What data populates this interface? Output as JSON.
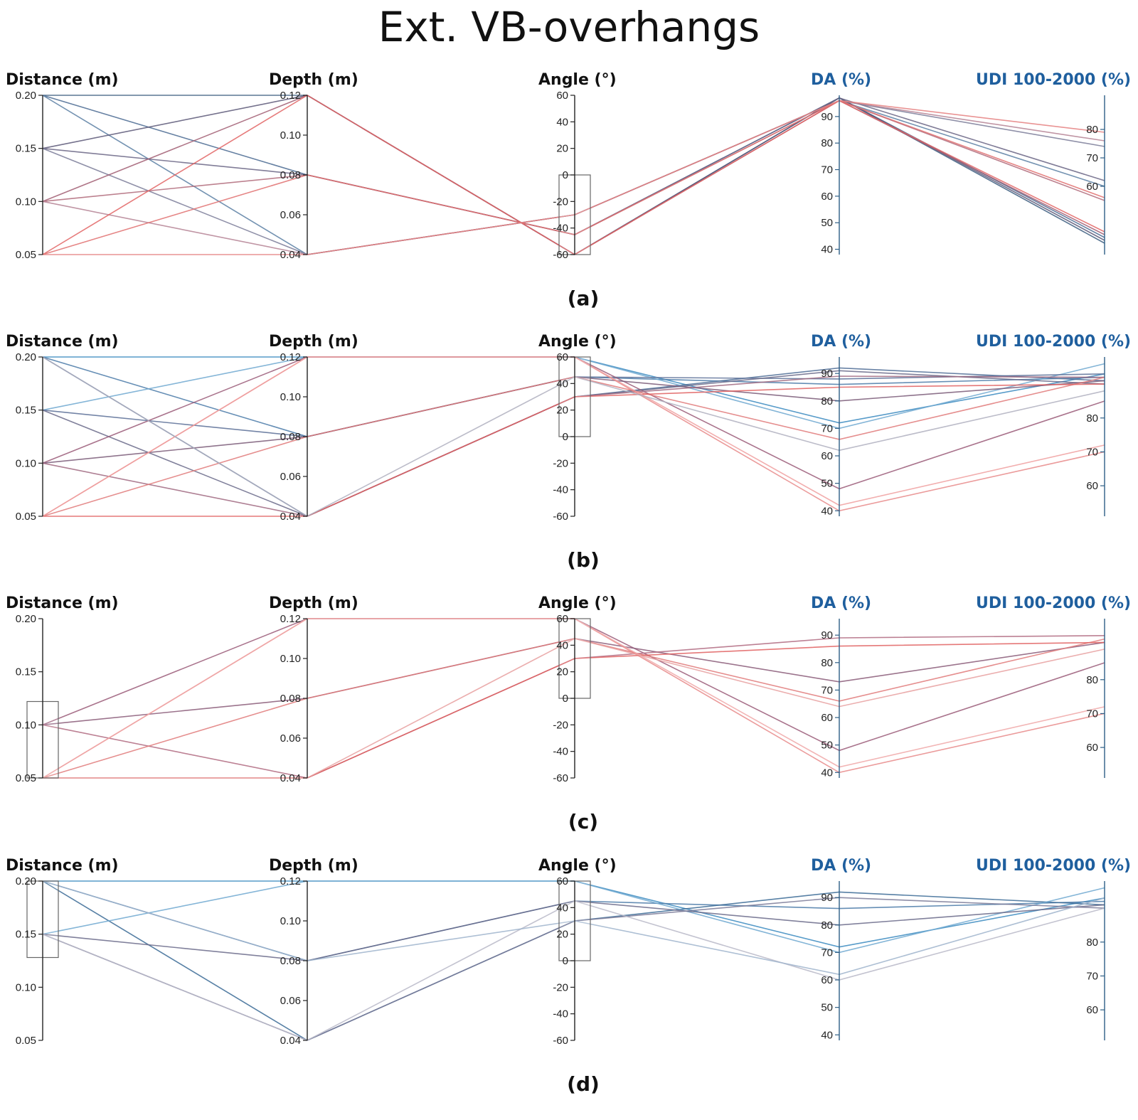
{
  "title": "Ext. VB-overhangs",
  "colors": {
    "blue": "#2f6f9f",
    "red": "#e05a5a",
    "axis": "#222222",
    "title_blue": "#1f5f9e"
  },
  "chart_data": [
    {
      "type": "parallel_coordinates",
      "label": "(a)",
      "axes": [
        {
          "name": "Distance (m)",
          "range": [
            0.05,
            0.2
          ],
          "ticks": [
            "0.20",
            "0.15",
            "0.10",
            "0.05"
          ],
          "tickValues": [
            0.2,
            0.15,
            0.1,
            0.05
          ],
          "tickSide": "left",
          "color": "dark"
        },
        {
          "name": "Depth (m)",
          "range": [
            0.04,
            0.12
          ],
          "ticks": [
            "0.12",
            "0.10",
            "0.08",
            "0.06",
            "0.04"
          ],
          "tickValues": [
            0.12,
            0.1,
            0.08,
            0.06,
            0.04
          ],
          "tickSide": "left",
          "color": "dark"
        },
        {
          "name": "Angle (°)",
          "range": [
            -60,
            60
          ],
          "ticks": [
            "60",
            "40",
            "20",
            "0",
            "-20",
            "-40",
            "-60"
          ],
          "tickValues": [
            60,
            40,
            20,
            0,
            -20,
            -40,
            -60
          ],
          "tickSide": "left",
          "color": "dark"
        },
        {
          "name": "DA (%)",
          "range": [
            38,
            98
          ],
          "ticks": [
            "90",
            "80",
            "70",
            "60",
            "50",
            "40"
          ],
          "tickValues": [
            90,
            80,
            70,
            60,
            50,
            40
          ],
          "tickSide": "left",
          "color": "blue"
        },
        {
          "name": "UDI 100-2000 (%)",
          "range": [
            36,
            92
          ],
          "ticks": [
            "80",
            "70",
            "60"
          ],
          "tickValues": [
            80,
            70,
            60
          ],
          "tickSide": "left",
          "color": "blue"
        }
      ],
      "brush": {
        "axis": 2,
        "range": [
          -60,
          0
        ]
      },
      "lines": [
        {
          "v": [
            0.2,
            0.12,
            -60,
            97,
            40
          ],
          "c": "#3d5e80"
        },
        {
          "v": [
            0.2,
            0.08,
            -45,
            97,
            42
          ],
          "c": "#4a6a92"
        },
        {
          "v": [
            0.2,
            0.04,
            -30,
            96,
            60
          ],
          "c": "#5b7fa3"
        },
        {
          "v": [
            0.15,
            0.12,
            -60,
            97,
            41
          ],
          "c": "#5c5878"
        },
        {
          "v": [
            0.15,
            0.08,
            -45,
            97,
            62
          ],
          "c": "#6a6585"
        },
        {
          "v": [
            0.15,
            0.04,
            -30,
            96,
            74
          ],
          "c": "#7b7d99"
        },
        {
          "v": [
            0.1,
            0.12,
            -60,
            96,
            43
          ],
          "c": "#a15d72"
        },
        {
          "v": [
            0.1,
            0.08,
            -45,
            96,
            55
          ],
          "c": "#b06a7a"
        },
        {
          "v": [
            0.1,
            0.04,
            -30,
            96,
            76
          ],
          "c": "#b58294"
        },
        {
          "v": [
            0.05,
            0.12,
            -60,
            96,
            44
          ],
          "c": "#e26464"
        },
        {
          "v": [
            0.05,
            0.08,
            -45,
            96,
            56
          ],
          "c": "#e07070"
        },
        {
          "v": [
            0.05,
            0.04,
            -30,
            96,
            79
          ],
          "c": "#e58080"
        }
      ]
    },
    {
      "type": "parallel_coordinates",
      "label": "(b)",
      "axes": [
        {
          "name": "Distance (m)",
          "range": [
            0.05,
            0.2
          ],
          "ticks": [
            "0.20",
            "0.15",
            "0.10",
            "0.05"
          ],
          "tickValues": [
            0.2,
            0.15,
            0.1,
            0.05
          ],
          "tickSide": "left",
          "color": "dark"
        },
        {
          "name": "Depth (m)",
          "range": [
            0.04,
            0.12
          ],
          "ticks": [
            "0.12",
            "0.10",
            "0.08",
            "0.06",
            "0.04"
          ],
          "tickValues": [
            0.12,
            0.1,
            0.08,
            0.06,
            0.04
          ],
          "tickSide": "left",
          "color": "dark"
        },
        {
          "name": "Angle (°)",
          "range": [
            -60,
            60
          ],
          "ticks": [
            "60",
            "40",
            "20",
            "0",
            "-20",
            "-40",
            "-60"
          ],
          "tickValues": [
            60,
            40,
            20,
            0,
            -20,
            -40,
            -60
          ],
          "tickSide": "left",
          "color": "dark"
        },
        {
          "name": "DA (%)",
          "range": [
            38,
            96
          ],
          "ticks": [
            "90",
            "80",
            "70",
            "60",
            "50",
            "40"
          ],
          "tickValues": [
            90,
            80,
            70,
            60,
            50,
            40
          ],
          "tickSide": "left",
          "color": "blue"
        },
        {
          "name": "UDI 100-2000 (%)",
          "range": [
            51,
            98
          ],
          "ticks": [
            "80",
            "70",
            "60"
          ],
          "tickValues": [
            80,
            70,
            60
          ],
          "tickSide": "left",
          "color": "blue"
        }
      ],
      "brush": {
        "axis": 2,
        "range": [
          0,
          60
        ]
      },
      "lines": [
        {
          "v": [
            0.2,
            0.12,
            60,
            72,
            93
          ],
          "c": "#3a8ac0"
        },
        {
          "v": [
            0.2,
            0.08,
            45,
            86,
            92
          ],
          "c": "#4a7aa8"
        },
        {
          "v": [
            0.2,
            0.04,
            30,
            92,
            91
          ],
          "c": "#4d6c95"
        },
        {
          "v": [
            0.15,
            0.12,
            60,
            70,
            96
          ],
          "c": "#6fa8d0"
        },
        {
          "v": [
            0.15,
            0.08,
            45,
            88,
            93
          ],
          "c": "#5a6f96"
        },
        {
          "v": [
            0.15,
            0.04,
            30,
            91,
            90
          ],
          "c": "#6a6a8a"
        },
        {
          "v": [
            0.1,
            0.12,
            60,
            48,
            85
          ],
          "c": "#9a5a78"
        },
        {
          "v": [
            0.1,
            0.08,
            45,
            80,
            91
          ],
          "c": "#7a5a78"
        },
        {
          "v": [
            0.1,
            0.04,
            30,
            89,
            92
          ],
          "c": "#a06880"
        },
        {
          "v": [
            0.05,
            0.12,
            60,
            40,
            70
          ],
          "c": "#e88a8a"
        },
        {
          "v": [
            0.05,
            0.08,
            45,
            66,
            92
          ],
          "c": "#e07a7a"
        },
        {
          "v": [
            0.05,
            0.04,
            30,
            85,
            90
          ],
          "c": "#e06060"
        },
        {
          "v": [
            0.05,
            0.12,
            60,
            42,
            72
          ],
          "c": "#f0a0a0"
        },
        {
          "v": [
            0.2,
            0.04,
            45,
            62,
            88
          ],
          "c": "#b0b0c0"
        }
      ]
    },
    {
      "type": "parallel_coordinates",
      "label": "(c)",
      "axes": [
        {
          "name": "Distance (m)",
          "range": [
            0.05,
            0.2
          ],
          "ticks": [
            "0.20",
            "0.15",
            "0.10",
            "0.05"
          ],
          "tickValues": [
            0.2,
            0.15,
            0.1,
            0.05
          ],
          "tickSide": "left",
          "color": "dark"
        },
        {
          "name": "Depth (m)",
          "range": [
            0.04,
            0.12
          ],
          "ticks": [
            "0.12",
            "0.10",
            "0.08",
            "0.06",
            "0.04"
          ],
          "tickValues": [
            0.12,
            0.1,
            0.08,
            0.06,
            0.04
          ],
          "tickSide": "left",
          "color": "dark"
        },
        {
          "name": "Angle (°)",
          "range": [
            -60,
            60
          ],
          "ticks": [
            "60",
            "40",
            "20",
            "0",
            "-20",
            "-40",
            "-60"
          ],
          "tickValues": [
            60,
            40,
            20,
            0,
            -20,
            -40,
            -60
          ],
          "tickSide": "left",
          "color": "dark"
        },
        {
          "name": "DA (%)",
          "range": [
            38,
            96
          ],
          "ticks": [
            "90",
            "80",
            "70",
            "60",
            "50",
            "40"
          ],
          "tickValues": [
            90,
            80,
            70,
            60,
            50,
            40
          ],
          "tickSide": "left",
          "color": "blue"
        },
        {
          "name": "UDI 100-2000 (%)",
          "range": [
            51,
            98
          ],
          "ticks": [
            "80",
            "70",
            "60"
          ],
          "tickValues": [
            80,
            70,
            60
          ],
          "tickSide": "left",
          "color": "blue"
        }
      ],
      "brush": {
        "axis": 0,
        "range": [
          0.05,
          0.122
        ]
      },
      "brush2": {
        "axis": 2,
        "range": [
          0,
          60
        ]
      },
      "lines": [
        {
          "v": [
            0.1,
            0.12,
            60,
            48,
            85
          ],
          "c": "#9a5a78"
        },
        {
          "v": [
            0.1,
            0.08,
            45,
            73,
            91
          ],
          "c": "#8a5a78"
        },
        {
          "v": [
            0.1,
            0.04,
            30,
            89,
            93
          ],
          "c": "#b06a80"
        },
        {
          "v": [
            0.05,
            0.12,
            60,
            40,
            70
          ],
          "c": "#e88a8a"
        },
        {
          "v": [
            0.05,
            0.08,
            45,
            66,
            92
          ],
          "c": "#e07a7a"
        },
        {
          "v": [
            0.05,
            0.04,
            30,
            86,
            91
          ],
          "c": "#e06060"
        },
        {
          "v": [
            0.05,
            0.12,
            60,
            42,
            72
          ],
          "c": "#f0a8a8"
        },
        {
          "v": [
            0.05,
            0.04,
            45,
            64,
            89
          ],
          "c": "#e8a0a0"
        }
      ]
    },
    {
      "type": "parallel_coordinates",
      "label": "(d)",
      "axes": [
        {
          "name": "Distance (m)",
          "range": [
            0.05,
            0.2
          ],
          "ticks": [
            "0.20",
            "0.15",
            "0.10",
            "0.05"
          ],
          "tickValues": [
            0.2,
            0.15,
            0.1,
            0.05
          ],
          "tickSide": "left",
          "color": "dark"
        },
        {
          "name": "Depth (m)",
          "range": [
            0.04,
            0.12
          ],
          "ticks": [
            "0.12",
            "0.10",
            "0.08",
            "0.06",
            "0.04"
          ],
          "tickValues": [
            0.12,
            0.1,
            0.08,
            0.06,
            0.04
          ],
          "tickSide": "left",
          "color": "dark"
        },
        {
          "name": "Angle (°)",
          "range": [
            -60,
            60
          ],
          "ticks": [
            "60",
            "40",
            "20",
            "0",
            "-20",
            "-40",
            "-60"
          ],
          "tickValues": [
            60,
            40,
            20,
            0,
            -20,
            -40,
            -60
          ],
          "tickSide": "left",
          "color": "dark"
        },
        {
          "name": "DA (%)",
          "range": [
            38,
            96
          ],
          "ticks": [
            "90",
            "80",
            "70",
            "60",
            "50",
            "40"
          ],
          "tickValues": [
            90,
            80,
            70,
            60,
            50,
            40
          ],
          "tickSide": "left",
          "color": "blue"
        },
        {
          "name": "UDI 100-2000 (%)",
          "range": [
            51,
            98
          ],
          "ticks": [
            "80",
            "70",
            "60"
          ],
          "tickValues": [
            80,
            70,
            60
          ],
          "tickSide": "left",
          "color": "blue"
        }
      ],
      "brush": {
        "axis": 0,
        "range": [
          0.128,
          0.2
        ]
      },
      "brush2": {
        "axis": 2,
        "range": [
          0,
          60
        ]
      },
      "lines": [
        {
          "v": [
            0.2,
            0.12,
            60,
            72,
            93
          ],
          "c": "#3a8ac0"
        },
        {
          "v": [
            0.2,
            0.08,
            45,
            86,
            92
          ],
          "c": "#4a7aa8"
        },
        {
          "v": [
            0.2,
            0.04,
            30,
            92,
            91
          ],
          "c": "#3a6a95"
        },
        {
          "v": [
            0.15,
            0.12,
            60,
            70,
            96
          ],
          "c": "#6fa8d0"
        },
        {
          "v": [
            0.15,
            0.08,
            45,
            80,
            91
          ],
          "c": "#6a6a8a"
        },
        {
          "v": [
            0.15,
            0.04,
            30,
            90,
            90
          ],
          "c": "#7a7a98"
        },
        {
          "v": [
            0.15,
            0.04,
            45,
            60,
            90
          ],
          "c": "#b8b8c8"
        },
        {
          "v": [
            0.2,
            0.08,
            30,
            62,
            93
          ],
          "c": "#9fb4cc"
        }
      ]
    }
  ]
}
